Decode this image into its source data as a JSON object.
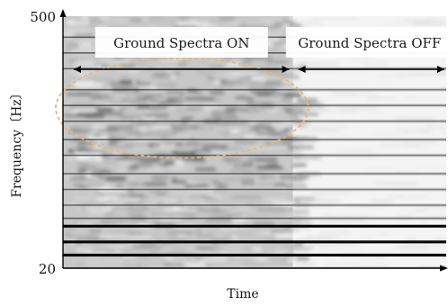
{
  "chart_data": {
    "type": "heatmap",
    "title": "",
    "xlabel": "Time",
    "ylabel": "Frequency〔Hz〕",
    "x_is_relative_time": true,
    "ylim": [
      20,
      500
    ],
    "y_ticks": [
      "500",
      "20"
    ],
    "x_ticks": [],
    "colormap": "grayscale (dark = high intensity)",
    "segments": [
      {
        "label": "Ground Spectra ON",
        "x_range": [
          0.0,
          0.6
        ]
      },
      {
        "label": "Ground Spectra OFF",
        "x_range": [
          0.6,
          1.0
        ]
      }
    ],
    "highlight": {
      "shape": "ellipse",
      "style": "dashed",
      "color": "#e8b77a",
      "x_range": [
        0.0,
        0.64
      ],
      "y_range": [
        230,
        420
      ]
    },
    "persistent_lines_hz": [
      20,
      45,
      70,
      100,
      115,
      140,
      170,
      200,
      235,
      265,
      300,
      330,
      360,
      400,
      430,
      460
    ],
    "strong_lines_hz": [
      45,
      70,
      100
    ],
    "colors": {
      "on_region_base": "#c8c8c8",
      "off_region_base": "#f4f4f4",
      "band": "#2a2a2a",
      "dark_band": "#080808",
      "axis": "#000000",
      "highlight": "#e8b77a"
    }
  }
}
